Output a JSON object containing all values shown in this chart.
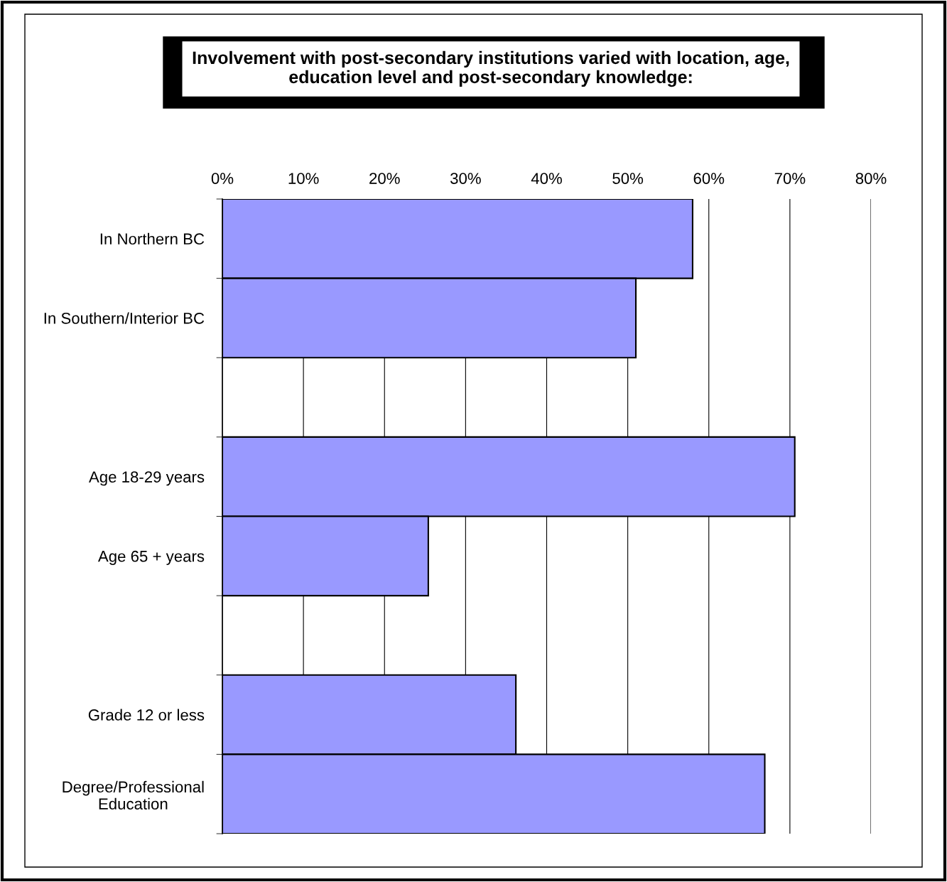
{
  "chart_data": {
    "type": "bar",
    "orientation": "horizontal",
    "title": "Involvement with post-secondary institutions varied with location, age,\neducation level and post-secondary knowledge:",
    "categories": [
      "In Northern BC",
      "In Southern/Interior BC",
      null,
      "Age 18-29 years",
      "Age 65 + years",
      null,
      "Grade 12 or less",
      "Degree/Professional\nEducation"
    ],
    "values": [
      58,
      51,
      null,
      70.6,
      25.4,
      null,
      36.2,
      66.9
    ],
    "color": "#9999ff",
    "xlim": [
      0,
      80
    ],
    "xticks": [
      {
        "value": 0,
        "label": "0%"
      },
      {
        "value": 10,
        "label": "10%"
      },
      {
        "value": 20,
        "label": "20%"
      },
      {
        "value": 30,
        "label": "30%"
      },
      {
        "value": 40,
        "label": "40%"
      },
      {
        "value": 50,
        "label": "50%"
      },
      {
        "value": 60,
        "label": "60%"
      },
      {
        "value": 70,
        "label": "70%"
      },
      {
        "value": 80,
        "label": "80%"
      }
    ],
    "grid": "x",
    "legend": false
  }
}
